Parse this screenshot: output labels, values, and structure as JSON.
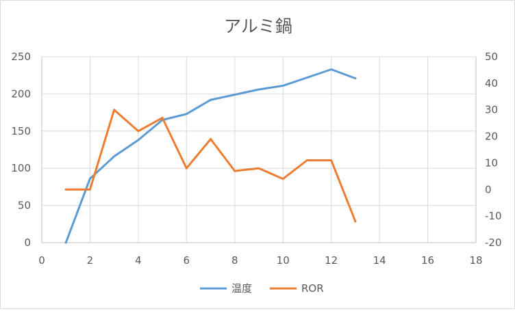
{
  "chart_data": {
    "type": "line",
    "title": "アルミ鍋",
    "x": [
      1,
      2,
      3,
      4,
      5,
      6,
      7,
      8,
      9,
      10,
      11,
      12,
      13
    ],
    "series": [
      {
        "name": "温度",
        "axis": "left",
        "color": "#5b9bd5",
        "values": [
          0,
          86,
          116,
          138,
          165,
          173,
          192,
          199,
          206,
          211,
          222,
          233,
          221
        ]
      },
      {
        "name": "ROR",
        "axis": "right",
        "color": "#ed7d31",
        "values": [
          0,
          0,
          30,
          22,
          27,
          8,
          19,
          7,
          8,
          4,
          11,
          11,
          -12
        ]
      }
    ],
    "xlim": [
      0,
      18
    ],
    "x_ticks": [
      0,
      2,
      4,
      6,
      8,
      10,
      12,
      14,
      16,
      18
    ],
    "ylim_left": [
      0,
      250
    ],
    "y_ticks_left": [
      0,
      50,
      100,
      150,
      200,
      250
    ],
    "ylim_right": [
      -20,
      50
    ],
    "y_ticks_right": [
      -20,
      -10,
      0,
      10,
      20,
      30,
      40,
      50
    ],
    "grid": true,
    "legend_position": "bottom"
  }
}
